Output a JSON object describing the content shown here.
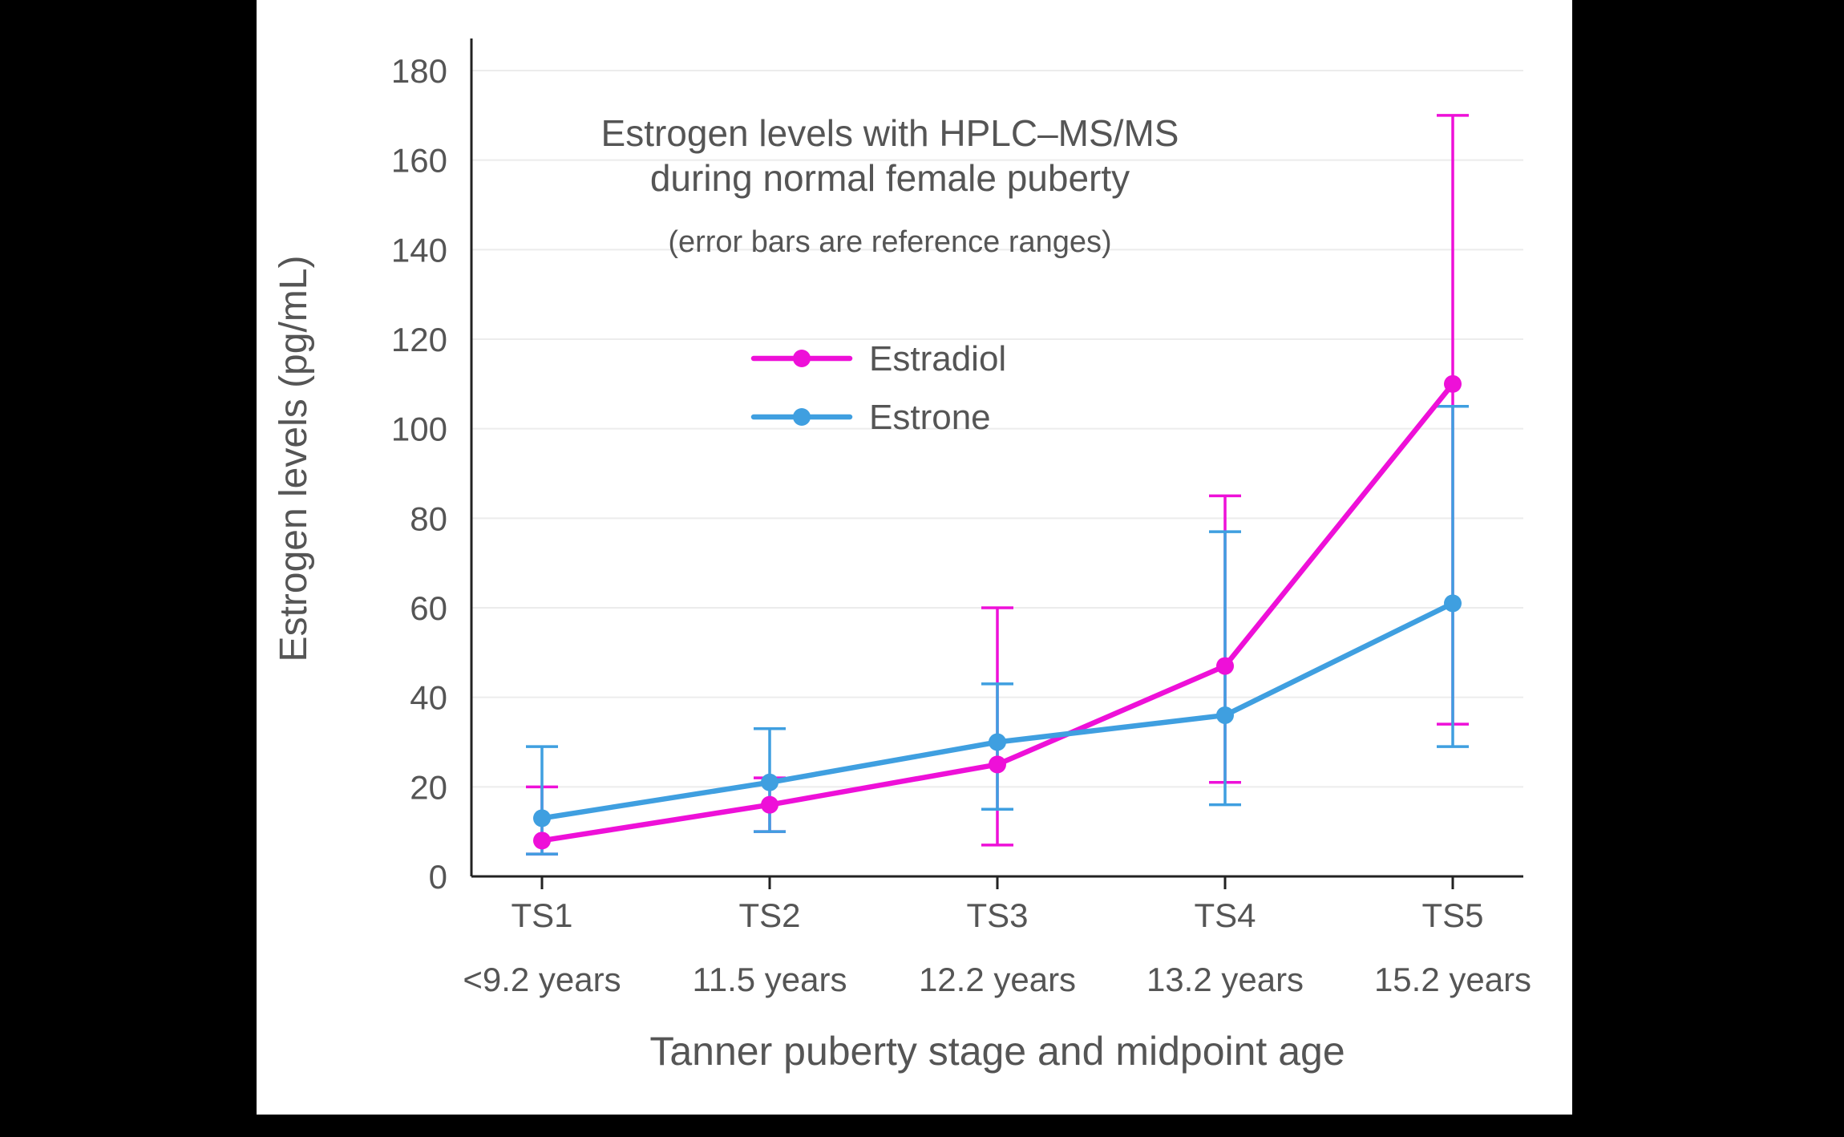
{
  "window": {
    "background": "#000000",
    "panel_background": "#ffffff"
  },
  "chart_data": {
    "type": "line",
    "title_lines": [
      "Estrogen levels with HPLC–MS/MS",
      "during normal female puberty"
    ],
    "subtitle": "(error bars are reference ranges)",
    "xlabel": "Tanner puberty stage and midpoint age",
    "ylabel": "Estrogen levels (pg/mL)",
    "ylim": [
      0,
      180
    ],
    "ytick_step": 20,
    "grid": "horizontal",
    "legend_position": "upper-center-inside",
    "categories": [
      "TS1",
      "TS2",
      "TS3",
      "TS4",
      "TS5"
    ],
    "category_sublabels": [
      "<9.2 years",
      "11.5 years",
      "12.2 years",
      "13.2 years",
      "15.2 years"
    ],
    "series": [
      {
        "name": "Estradiol",
        "color": "#ee10d8",
        "values": [
          8,
          16,
          25,
          47,
          110
        ],
        "ref_range_low": [
          5,
          10,
          7,
          21,
          34
        ],
        "ref_range_high": [
          20,
          22,
          60,
          85,
          170
        ]
      },
      {
        "name": "Estrone",
        "color": "#3f9fe0",
        "values": [
          13,
          21,
          30,
          36,
          61
        ],
        "ref_range_low": [
          5,
          10,
          15,
          16,
          29
        ],
        "ref_range_high": [
          29,
          33,
          43,
          77,
          105
        ]
      }
    ],
    "axis_color": "#222222",
    "grid_color": "#ececec",
    "text_color": "#555555"
  }
}
